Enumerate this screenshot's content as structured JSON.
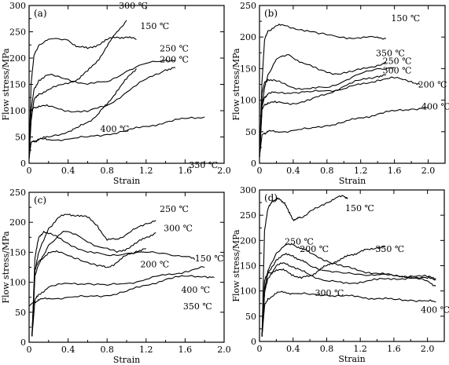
{
  "chart_data": [
    {
      "type": "line",
      "panel_label": "(a)",
      "xlabel": "Strain",
      "ylabel": "Flow stress/MPa",
      "xlim": [
        0,
        2.0
      ],
      "ylim": [
        0,
        300
      ],
      "xticks": [
        "0",
        "0.4",
        "0.8",
        "1.2",
        "1.6",
        "2.0"
      ],
      "yticks": [
        "0",
        "50",
        "100",
        "150",
        "200",
        "250",
        "300"
      ],
      "series": [
        {
          "name": "300 ℃",
          "x": [
            0.0,
            0.02,
            0.05,
            0.1,
            0.2,
            0.35,
            0.5,
            0.6,
            0.7,
            0.8,
            0.9,
            1.0
          ],
          "y": [
            10,
            80,
            120,
            132,
            140,
            150,
            160,
            175,
            195,
            222,
            250,
            272
          ]
        },
        {
          "name": "150 ℃",
          "x": [
            0.0,
            0.02,
            0.05,
            0.1,
            0.2,
            0.4,
            0.5,
            0.6,
            0.7,
            0.8,
            0.9,
            1.0,
            1.1
          ],
          "y": [
            10,
            150,
            205,
            225,
            236,
            234,
            222,
            218,
            225,
            235,
            240,
            240,
            235
          ]
        },
        {
          "name": "200 ℃",
          "x": [
            0.0,
            0.02,
            0.05,
            0.1,
            0.2,
            0.4,
            0.6,
            0.8,
            1.0,
            1.2,
            1.4,
            1.5
          ],
          "y": [
            10,
            100,
            140,
            158,
            168,
            160,
            150,
            155,
            175,
            190,
            196,
            196
          ]
        },
        {
          "name": "250 ℃",
          "x": [
            0.0,
            0.02,
            0.05,
            0.1,
            0.2,
            0.4,
            0.6,
            0.8,
            1.0,
            1.2,
            1.4,
            1.5
          ],
          "y": [
            10,
            100,
            106,
            109,
            108,
            100,
            98,
            110,
            135,
            160,
            178,
            182
          ]
        },
        {
          "name": "400 ℃",
          "x": [
            0.0,
            0.02,
            0.05,
            0.1,
            0.2,
            0.4,
            0.5,
            0.6,
            0.7,
            0.8,
            0.9,
            1.0,
            1.1
          ],
          "y": [
            10,
            40,
            42,
            45,
            50,
            60,
            68,
            78,
            92,
            112,
            138,
            160,
            180
          ]
        },
        {
          "name": "350 ℃",
          "x": [
            0.0,
            0.02,
            0.05,
            0.1,
            0.2,
            0.4,
            0.6,
            0.8,
            1.0,
            1.2,
            1.4,
            1.6,
            1.8
          ],
          "y": [
            10,
            40,
            43,
            45,
            45,
            46,
            50,
            55,
            62,
            70,
            78,
            85,
            88
          ]
        }
      ],
      "labels": [
        "300 ℃",
        "150 ℃",
        "200 ℃",
        "250 ℃",
        "400 ℃",
        "350 ℃"
      ]
    },
    {
      "type": "line",
      "panel_label": "(b)",
      "xlabel": "Strain",
      "ylabel": "Flow stress/MPa",
      "xlim": [
        0,
        2.2
      ],
      "ylim": [
        0,
        250
      ],
      "xticks": [
        "0",
        "0.4",
        "0.8",
        "1.2",
        "1.6",
        "2.0"
      ],
      "yticks": [
        "0",
        "50",
        "100",
        "150",
        "200",
        "250"
      ],
      "series": [
        {
          "name": "150 ℃",
          "x": [
            0.0,
            0.03,
            0.06,
            0.1,
            0.2,
            0.3,
            0.5,
            0.7,
            1.0,
            1.2,
            1.4,
            1.5
          ],
          "y": [
            10,
            130,
            195,
            210,
            218,
            218,
            212,
            205,
            200,
            198,
            200,
            198
          ]
        },
        {
          "name": "350 ℃",
          "x": [
            0.0,
            0.03,
            0.06,
            0.1,
            0.2,
            0.35,
            0.5,
            0.7,
            0.9,
            1.1,
            1.3,
            1.5
          ],
          "y": [
            10,
            90,
            120,
            140,
            165,
            172,
            160,
            148,
            142,
            145,
            152,
            160
          ]
        },
        {
          "name": "250 ℃",
          "x": [
            0.0,
            0.03,
            0.06,
            0.1,
            0.2,
            0.4,
            0.6,
            0.8,
            1.0,
            1.2,
            1.4,
            1.6
          ],
          "y": [
            10,
            110,
            128,
            133,
            130,
            120,
            118,
            120,
            130,
            142,
            150,
            152
          ]
        },
        {
          "name": "300 ℃",
          "x": [
            0.0,
            0.03,
            0.06,
            0.1,
            0.2,
            0.4,
            0.6,
            0.8,
            1.0,
            1.2,
            1.4,
            1.5
          ],
          "y": [
            10,
            85,
            93,
            96,
            96,
            95,
            100,
            110,
            122,
            132,
            138,
            140
          ]
        },
        {
          "name": "200 ℃",
          "x": [
            0.0,
            0.03,
            0.06,
            0.1,
            0.2,
            0.4,
            0.6,
            0.8,
            1.0,
            1.2,
            1.4,
            1.6,
            1.8,
            1.9
          ],
          "y": [
            10,
            90,
            105,
            110,
            112,
            112,
            113,
            115,
            118,
            125,
            132,
            135,
            130,
            125
          ]
        },
        {
          "name": "400 ℃",
          "x": [
            0.0,
            0.03,
            0.06,
            0.1,
            0.2,
            0.4,
            0.6,
            0.8,
            1.0,
            1.2,
            1.4,
            1.6,
            1.8,
            2.0
          ],
          "y": [
            10,
            45,
            48,
            50,
            50,
            52,
            55,
            60,
            65,
            72,
            78,
            83,
            86,
            88
          ]
        }
      ],
      "labels": [
        "150 ℃",
        "350 ℃",
        "250 ℃",
        "300 ℃",
        "200 ℃",
        "400 ℃"
      ]
    },
    {
      "type": "line",
      "panel_label": "(c)",
      "xlabel": "Strain",
      "ylabel": "Flow stress/MPa",
      "xlim": [
        0,
        2.0
      ],
      "ylim": [
        0,
        250
      ],
      "xticks": [
        "0",
        "0.4",
        "0.8",
        "1.2",
        "1.6",
        "2.0"
      ],
      "yticks": [
        "0",
        "50",
        "100",
        "150",
        "200",
        "250"
      ],
      "series": [
        {
          "name": "250 ℃",
          "x": [
            0.03,
            0.06,
            0.1,
            0.2,
            0.3,
            0.4,
            0.5,
            0.6,
            0.7,
            0.8,
            0.9,
            1.0,
            1.1,
            1.2,
            1.3
          ],
          "y": [
            10,
            120,
            150,
            190,
            208,
            213,
            212,
            208,
            195,
            170,
            172,
            180,
            190,
            198,
            203
          ]
        },
        {
          "name": "300 ℃",
          "x": [
            0.03,
            0.06,
            0.1,
            0.2,
            0.35,
            0.5,
            0.7,
            0.9,
            1.0,
            1.1,
            1.2,
            1.3
          ],
          "y": [
            10,
            110,
            130,
            162,
            185,
            178,
            160,
            150,
            156,
            165,
            175,
            183
          ]
        },
        {
          "name": "150 ℃",
          "x": [
            0.03,
            0.06,
            0.1,
            0.15,
            0.25,
            0.4,
            0.6,
            0.8,
            1.0,
            1.2,
            1.4,
            1.6,
            1.7
          ],
          "y": [
            10,
            140,
            175,
            185,
            178,
            165,
            150,
            145,
            148,
            150,
            148,
            143,
            138
          ]
        },
        {
          "name": "200 ℃",
          "x": [
            0.03,
            0.06,
            0.1,
            0.2,
            0.3,
            0.5,
            0.7,
            0.8,
            0.9,
            1.0,
            1.1,
            1.2
          ],
          "y": [
            10,
            120,
            135,
            150,
            150,
            140,
            127,
            125,
            133,
            145,
            152,
            156
          ]
        },
        {
          "name": "400 ℃",
          "x": [
            0.03,
            0.06,
            0.1,
            0.2,
            0.4,
            0.6,
            0.8,
            1.0,
            1.2,
            1.4,
            1.6,
            1.8
          ],
          "y": [
            10,
            70,
            80,
            92,
            98,
            98,
            95,
            98,
            105,
            112,
            118,
            125
          ]
        },
        {
          "name": "350 ℃",
          "x": [
            0.0,
            0.03,
            0.06,
            0.1,
            0.2,
            0.4,
            0.6,
            0.8,
            1.0,
            1.2,
            1.4,
            1.6,
            1.8,
            1.9
          ],
          "y": [
            60,
            65,
            68,
            70,
            73,
            75,
            76,
            78,
            85,
            95,
            105,
            110,
            110,
            108
          ]
        }
      ],
      "labels": [
        "250 ℃",
        "300 ℃",
        "150 ℃",
        "200 ℃",
        "400 ℃",
        "350 ℃"
      ]
    },
    {
      "type": "line",
      "panel_label": "(d)",
      "xlabel": "Strain",
      "ylabel": "Flow stress/MPa",
      "xlim": [
        0,
        2.2
      ],
      "ylim": [
        0,
        300
      ],
      "xticks": [
        "0",
        "0.4",
        "0.8",
        "1.2",
        "1.6",
        "2.0"
      ],
      "yticks": [
        "0",
        "50",
        "100",
        "150",
        "200",
        "250",
        "300"
      ],
      "series": [
        {
          "name": "150 ℃",
          "x": [
            0.03,
            0.06,
            0.1,
            0.15,
            0.2,
            0.25,
            0.3,
            0.35,
            0.4,
            0.45,
            0.5,
            0.6,
            0.7,
            0.8,
            0.9,
            1.0,
            1.05
          ],
          "y": [
            10,
            220,
            262,
            278,
            282,
            280,
            275,
            255,
            242,
            243,
            245,
            258,
            265,
            275,
            283,
            288,
            285
          ]
        },
        {
          "name": "250 ℃",
          "x": [
            0.03,
            0.06,
            0.1,
            0.2,
            0.3,
            0.4,
            0.5,
            0.6,
            0.8,
            1.0,
            1.2,
            1.4,
            1.6,
            1.8,
            2.0,
            2.1
          ],
          "y": [
            10,
            100,
            140,
            175,
            190,
            192,
            185,
            175,
            160,
            148,
            140,
            135,
            130,
            128,
            125,
            122
          ]
        },
        {
          "name": "200 ℃",
          "x": [
            0.03,
            0.06,
            0.1,
            0.2,
            0.3,
            0.4,
            0.5,
            0.6,
            0.8,
            1.0,
            1.2,
            1.4,
            1.6,
            1.8,
            2.0,
            2.1
          ],
          "y": [
            10,
            100,
            135,
            162,
            172,
            170,
            160,
            150,
            140,
            135,
            133,
            132,
            130,
            130,
            128,
            125
          ]
        },
        {
          "name": "350 ℃",
          "x": [
            0.03,
            0.06,
            0.1,
            0.2,
            0.3,
            0.4,
            0.5,
            0.6,
            0.7,
            0.8,
            0.9,
            1.0,
            1.1,
            1.2,
            1.3,
            1.4,
            1.5
          ],
          "y": [
            10,
            120,
            135,
            142,
            140,
            132,
            125,
            130,
            140,
            150,
            158,
            165,
            172,
            178,
            182,
            186,
            188
          ]
        },
        {
          "name": "300 ℃",
          "x": [
            0.03,
            0.06,
            0.1,
            0.2,
            0.3,
            0.4,
            0.5,
            0.6,
            0.8,
            1.0,
            1.2,
            1.4,
            1.6,
            1.8,
            2.0,
            2.1
          ],
          "y": [
            10,
            95,
            125,
            150,
            155,
            148,
            140,
            132,
            120,
            115,
            118,
            122,
            125,
            125,
            120,
            110
          ]
        },
        {
          "name": "400 ℃",
          "x": [
            0.03,
            0.06,
            0.1,
            0.2,
            0.3,
            0.4,
            0.6,
            0.8,
            1.0,
            1.2,
            1.4,
            1.6,
            1.8,
            2.0,
            2.1
          ],
          "y": [
            10,
            70,
            85,
            95,
            98,
            95,
            93,
            92,
            90,
            88,
            85,
            83,
            82,
            80,
            78
          ]
        }
      ],
      "labels": [
        "150 ℃",
        "250 ℃",
        "200 ℃",
        "350 ℃",
        "300 ℃",
        "400 ℃"
      ]
    }
  ]
}
